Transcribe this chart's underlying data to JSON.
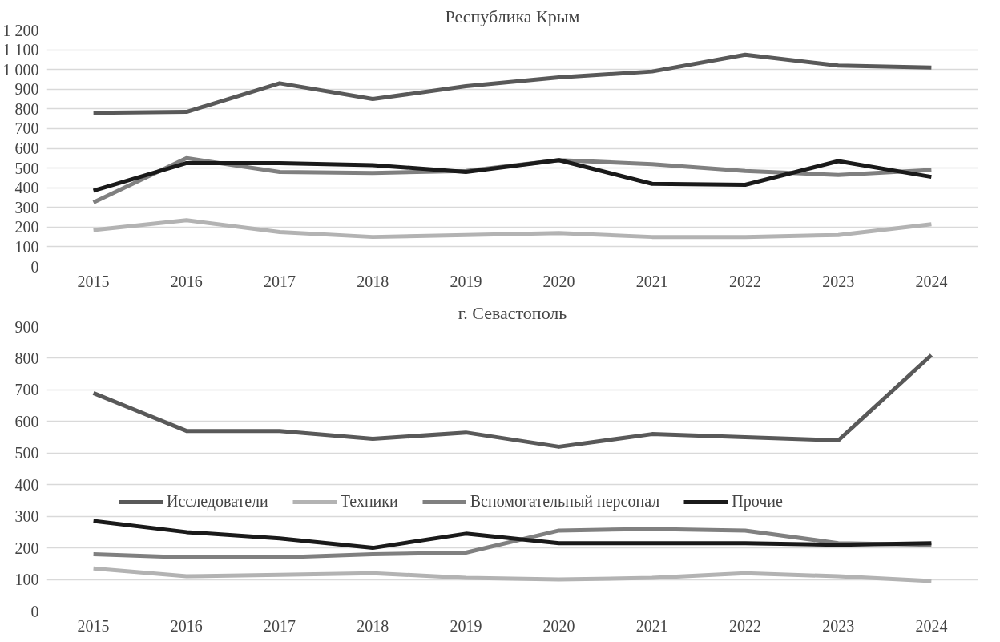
{
  "chart_data": [
    {
      "type": "line",
      "title": "Республика Крым",
      "categories": [
        "2015",
        "2016",
        "2017",
        "2018",
        "2019",
        "2020",
        "2021",
        "2022",
        "2023",
        "2024"
      ],
      "ylim": [
        0,
        1200
      ],
      "yticks": [
        0,
        100,
        200,
        300,
        400,
        500,
        600,
        700,
        800,
        900,
        {
          "value": 1000,
          "label": "1 000"
        },
        {
          "value": 1100,
          "label": "1 100"
        },
        {
          "value": 1200,
          "label": "1 200"
        }
      ],
      "grid": "y",
      "legend": false,
      "marker": "none",
      "line_style": "solid",
      "series": [
        {
          "color": "#595959",
          "values": [
            780,
            785,
            930,
            850,
            915,
            960,
            990,
            1075,
            1020,
            1010
          ]
        },
        {
          "color": "#b3b3b3",
          "values": [
            185,
            235,
            175,
            150,
            160,
            170,
            150,
            150,
            160,
            215
          ]
        },
        {
          "color": "#808080",
          "values": [
            325,
            550,
            480,
            475,
            485,
            540,
            520,
            485,
            465,
            490
          ]
        },
        {
          "color": "#1a1a1a",
          "values": [
            385,
            525,
            525,
            515,
            480,
            540,
            420,
            415,
            535,
            455
          ]
        }
      ]
    },
    {
      "type": "line",
      "title": "г. Севастополь",
      "categories": [
        "2015",
        "2016",
        "2017",
        "2018",
        "2019",
        "2020",
        "2021",
        "2022",
        "2023",
        "2024"
      ],
      "ylim": [
        0,
        900
      ],
      "yticks": [
        0,
        100,
        200,
        300,
        400,
        500,
        600,
        700,
        800,
        900
      ],
      "grid": "y",
      "legend": "center",
      "marker": "none",
      "line_style": "solid",
      "series": [
        {
          "name": "Исследователи",
          "color": "#595959",
          "values": [
            690,
            570,
            570,
            545,
            565,
            520,
            560,
            550,
            540,
            810
          ]
        },
        {
          "name": "Техники",
          "color": "#b3b3b3",
          "values": [
            135,
            110,
            115,
            120,
            105,
            100,
            105,
            120,
            110,
            95
          ]
        },
        {
          "name": "Вспомогательный персонал",
          "color": "#808080",
          "values": [
            180,
            170,
            170,
            180,
            185,
            255,
            260,
            255,
            215,
            210
          ]
        },
        {
          "name": "Прочие",
          "color": "#1a1a1a",
          "values": [
            285,
            250,
            230,
            200,
            245,
            215,
            215,
            215,
            210,
            215
          ]
        }
      ]
    }
  ]
}
